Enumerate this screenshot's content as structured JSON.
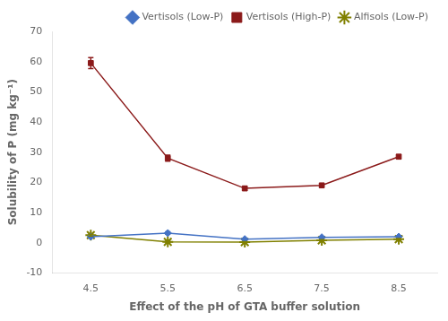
{
  "chart_data": {
    "type": "line",
    "x": [
      4.5,
      5.5,
      6.5,
      7.5,
      8.5
    ],
    "series": [
      {
        "name": "Vertisols (Low-P)",
        "color": "#4472C4",
        "marker": "diamond",
        "values": [
          2.0,
          3.2,
          1.2,
          1.8,
          2.0
        ],
        "errors": [
          0.4,
          0.4,
          0.3,
          0.3,
          0.3
        ]
      },
      {
        "name": "Vertisols (High-P)",
        "color": "#8B1A1A",
        "marker": "square",
        "values": [
          59.5,
          28.0,
          18.0,
          19.0,
          28.5
        ],
        "errors": [
          1.8,
          1.0,
          0.6,
          0.5,
          0.7
        ]
      },
      {
        "name": "Alfisols (Low-P)",
        "color": "#808000",
        "marker": "star",
        "values": [
          2.5,
          0.3,
          0.2,
          0.8,
          1.2
        ],
        "errors": [
          0.3,
          0.3,
          0.2,
          0.2,
          0.2
        ]
      }
    ],
    "xlabel": "Effect of the pH of GTA buffer solution",
    "ylabel": "Solubility of P (mg kg⁻¹)",
    "xlim": [
      4,
      9
    ],
    "xticks": [
      4.5,
      5.5,
      6.5,
      7.5,
      8.5
    ],
    "ylim": [
      -10,
      70
    ],
    "yticks": [
      -10,
      0,
      10,
      20,
      30,
      40,
      50,
      60,
      70
    ],
    "grid": false,
    "legend": "upper right"
  }
}
